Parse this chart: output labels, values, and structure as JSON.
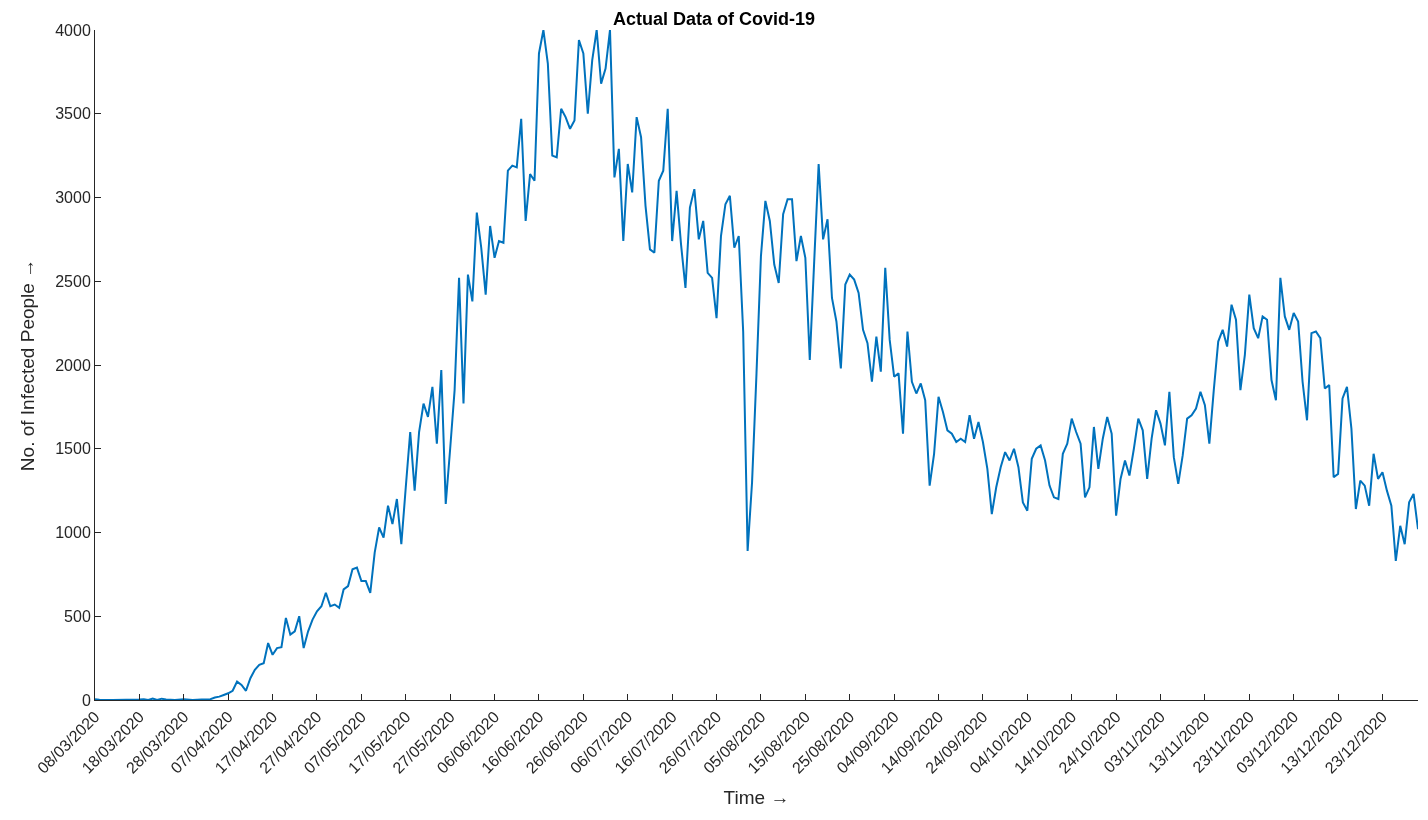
{
  "chart_data": {
    "type": "line",
    "title": "Actual Data of Covid-19",
    "xlabel": "Time →",
    "ylabel": "No. of Infected People →",
    "series": [
      {
        "color": "#0072bd",
        "x": [
          "2020-03-08",
          "2020-03-09",
          "2020-03-12",
          "2020-03-18",
          "2020-03-19",
          "2020-03-20",
          "2020-03-21",
          "2020-03-22",
          "2020-03-23",
          "2020-03-24",
          "2020-03-26",
          "2020-03-28",
          "2020-03-30",
          "2020-04-01",
          "2020-04-03",
          "2020-04-04",
          "2020-04-05",
          "2020-04-06",
          "2020-04-07",
          "2020-04-08",
          "2020-04-09",
          "2020-04-10",
          "2020-04-11",
          "2020-04-12",
          "2020-04-13",
          "2020-04-14",
          "2020-04-15",
          "2020-04-16",
          "2020-04-17",
          "2020-04-18",
          "2020-04-19",
          "2020-04-20",
          "2020-04-21",
          "2020-04-22",
          "2020-04-23",
          "2020-04-24",
          "2020-04-25",
          "2020-04-26",
          "2020-04-27",
          "2020-04-28",
          "2020-04-29",
          "2020-04-30",
          "2020-05-01",
          "2020-05-02",
          "2020-05-03",
          "2020-05-04",
          "2020-05-05",
          "2020-05-06",
          "2020-05-07",
          "2020-05-08",
          "2020-05-09",
          "2020-05-10",
          "2020-05-11",
          "2020-05-12",
          "2020-05-13",
          "2020-05-14",
          "2020-05-15",
          "2020-05-16",
          "2020-05-17",
          "2020-05-18",
          "2020-05-19",
          "2020-05-20",
          "2020-05-21",
          "2020-05-22",
          "2020-05-23",
          "2020-05-24",
          "2020-05-25",
          "2020-05-26",
          "2020-05-27",
          "2020-05-28",
          "2020-05-29",
          "2020-05-30",
          "2020-05-31",
          "2020-06-01",
          "2020-06-02",
          "2020-06-03",
          "2020-06-04",
          "2020-06-05",
          "2020-06-06",
          "2020-06-07",
          "2020-06-08",
          "2020-06-09",
          "2020-06-10",
          "2020-06-11",
          "2020-06-12",
          "2020-06-13",
          "2020-06-14",
          "2020-06-15",
          "2020-06-16",
          "2020-06-17",
          "2020-06-18",
          "2020-06-19",
          "2020-06-20",
          "2020-06-21",
          "2020-06-22",
          "2020-06-23",
          "2020-06-24",
          "2020-06-25",
          "2020-06-26",
          "2020-06-27",
          "2020-06-28",
          "2020-06-29",
          "2020-06-30",
          "2020-07-01",
          "2020-07-02",
          "2020-07-03",
          "2020-07-04",
          "2020-07-05",
          "2020-07-06",
          "2020-07-07",
          "2020-07-08",
          "2020-07-09",
          "2020-07-10",
          "2020-07-11",
          "2020-07-12",
          "2020-07-13",
          "2020-07-14",
          "2020-07-15",
          "2020-07-16",
          "2020-07-17",
          "2020-07-18",
          "2020-07-19",
          "2020-07-20",
          "2020-07-21",
          "2020-07-22",
          "2020-07-23",
          "2020-07-24",
          "2020-07-25",
          "2020-07-26",
          "2020-07-27",
          "2020-07-28",
          "2020-07-29",
          "2020-07-30",
          "2020-07-31",
          "2020-08-01",
          "2020-08-02",
          "2020-08-03",
          "2020-08-04",
          "2020-08-05",
          "2020-08-06",
          "2020-08-07",
          "2020-08-08",
          "2020-08-09",
          "2020-08-10",
          "2020-08-11",
          "2020-08-12",
          "2020-08-13",
          "2020-08-14",
          "2020-08-15",
          "2020-08-16",
          "2020-08-17",
          "2020-08-18",
          "2020-08-19",
          "2020-08-20",
          "2020-08-21",
          "2020-08-22",
          "2020-08-23",
          "2020-08-24",
          "2020-08-25",
          "2020-08-26",
          "2020-08-27",
          "2020-08-28",
          "2020-08-29",
          "2020-08-30",
          "2020-08-31",
          "2020-09-01",
          "2020-09-02",
          "2020-09-03",
          "2020-09-04",
          "2020-09-05",
          "2020-09-06",
          "2020-09-07",
          "2020-09-08",
          "2020-09-09",
          "2020-09-10",
          "2020-09-11",
          "2020-09-12",
          "2020-09-13",
          "2020-09-14",
          "2020-09-15",
          "2020-09-16",
          "2020-09-17",
          "2020-09-18",
          "2020-09-19",
          "2020-09-20",
          "2020-09-21",
          "2020-09-22",
          "2020-09-23",
          "2020-09-24",
          "2020-09-25",
          "2020-09-26",
          "2020-09-27",
          "2020-09-28",
          "2020-09-29",
          "2020-09-30",
          "2020-10-01",
          "2020-10-02",
          "2020-10-03",
          "2020-10-04",
          "2020-10-05",
          "2020-10-06",
          "2020-10-07",
          "2020-10-08",
          "2020-10-09",
          "2020-10-10",
          "2020-10-11",
          "2020-10-12",
          "2020-10-13",
          "2020-10-14",
          "2020-10-15",
          "2020-10-16",
          "2020-10-17",
          "2020-10-18",
          "2020-10-19",
          "2020-10-20",
          "2020-10-21",
          "2020-10-22",
          "2020-10-23",
          "2020-10-24",
          "2020-10-25",
          "2020-10-26",
          "2020-10-27",
          "2020-10-28",
          "2020-10-29",
          "2020-10-30",
          "2020-10-31",
          "2020-11-01",
          "2020-11-02",
          "2020-11-03",
          "2020-11-04",
          "2020-11-05",
          "2020-11-06",
          "2020-11-07",
          "2020-11-08",
          "2020-11-09",
          "2020-11-10",
          "2020-11-11",
          "2020-11-12",
          "2020-11-13",
          "2020-11-14",
          "2020-11-15",
          "2020-11-16",
          "2020-11-17",
          "2020-11-18",
          "2020-11-19",
          "2020-11-20",
          "2020-11-21",
          "2020-11-22",
          "2020-11-23",
          "2020-11-24",
          "2020-11-25",
          "2020-11-26",
          "2020-11-27",
          "2020-11-28",
          "2020-11-29",
          "2020-11-30",
          "2020-12-01",
          "2020-12-02",
          "2020-12-03",
          "2020-12-04",
          "2020-12-05",
          "2020-12-06",
          "2020-12-07",
          "2020-12-08",
          "2020-12-09",
          "2020-12-10",
          "2020-12-11",
          "2020-12-12",
          "2020-12-13",
          "2020-12-14",
          "2020-12-15",
          "2020-12-16",
          "2020-12-17",
          "2020-12-18",
          "2020-12-19",
          "2020-12-20",
          "2020-12-21",
          "2020-12-22",
          "2020-12-23",
          "2020-12-24",
          "2020-12-25",
          "2020-12-26",
          "2020-12-27",
          "2020-12-28",
          "2020-12-29",
          "2020-12-30",
          "2020-12-31"
        ],
        "values": [
          5,
          2,
          0,
          3,
          5,
          0,
          8,
          0,
          8,
          3,
          0,
          5,
          0,
          3,
          5,
          15,
          20,
          30,
          40,
          55,
          110,
          90,
          55,
          130,
          180,
          210,
          220,
          340,
          270,
          310,
          315,
          490,
          390,
          410,
          500,
          310,
          410,
          480,
          530,
          560,
          640,
          560,
          570,
          550,
          660,
          680,
          780,
          790,
          710,
          710,
          640,
          880,
          1030,
          970,
          1160,
          1050,
          1200,
          930,
          1270,
          1600,
          1250,
          1600,
          1770,
          1690,
          1870,
          1530,
          1970,
          1170,
          1500,
          1850,
          2520,
          1770,
          2540,
          2380,
          2910,
          2700,
          2420,
          2830,
          2640,
          2740,
          2730,
          3160,
          3190,
          3180,
          3470,
          2860,
          3140,
          3100,
          3860,
          4000,
          3800,
          3250,
          3240,
          3530,
          3480,
          3410,
          3460,
          3940,
          3860,
          3500,
          3820,
          4000,
          3680,
          3770,
          4000,
          3120,
          3290,
          2740,
          3200,
          3030,
          3480,
          3360,
          2950,
          2690,
          2670,
          3100,
          3160,
          3530,
          2740,
          3040,
          2720,
          2460,
          2940,
          3050,
          2750,
          2860,
          2550,
          2520,
          2280,
          2770,
          2960,
          3010,
          2700,
          2770,
          2200,
          890,
          1300,
          1950,
          2650,
          2980,
          2860,
          2600,
          2490,
          2900,
          2990,
          2990,
          2620,
          2770,
          2640,
          2030,
          2620,
          3200,
          2750,
          2870,
          2400,
          2260,
          1980,
          2480,
          2540,
          2510,
          2430,
          2210,
          2130,
          1900,
          2170,
          1960,
          2580,
          2150,
          1930,
          1950,
          1590,
          2200,
          1900,
          1830,
          1890,
          1790,
          1280,
          1470,
          1810,
          1720,
          1610,
          1590,
          1540,
          1560,
          1540,
          1700,
          1560,
          1660,
          1540,
          1380,
          1110,
          1270,
          1390,
          1480,
          1430,
          1500,
          1390,
          1180,
          1130,
          1440,
          1500,
          1520,
          1430,
          1280,
          1210,
          1200,
          1470,
          1530,
          1680,
          1600,
          1530,
          1210,
          1270,
          1630,
          1380,
          1560,
          1690,
          1590,
          1100,
          1320,
          1430,
          1340,
          1500,
          1680,
          1610,
          1320,
          1560,
          1730,
          1650,
          1520,
          1840,
          1450,
          1290,
          1460,
          1680,
          1700,
          1740,
          1840,
          1760,
          1530,
          1850,
          2140,
          2210,
          2110,
          2360,
          2270,
          1850,
          2060,
          2420,
          2220,
          2160,
          2290,
          2270,
          1910,
          1790,
          2520,
          2290,
          2210,
          2310,
          2260,
          1900,
          1670,
          2190,
          2200,
          2160,
          1860,
          1880,
          1330,
          1350,
          1800,
          1870,
          1620,
          1140,
          1310,
          1280,
          1160,
          1470,
          1320,
          1360,
          1250,
          1160,
          830,
          1040,
          930,
          1180,
          1230,
          1020
        ]
      }
    ],
    "xlim": [
      "2020-03-08",
      "2020-12-31"
    ],
    "xticks": [
      {
        "value": "2020-03-08",
        "label": "08/03/2020"
      },
      {
        "value": "2020-03-18",
        "label": "18/03/2020"
      },
      {
        "value": "2020-03-28",
        "label": "28/03/2020"
      },
      {
        "value": "2020-04-07",
        "label": "07/04/2020"
      },
      {
        "value": "2020-04-17",
        "label": "17/04/2020"
      },
      {
        "value": "2020-04-27",
        "label": "27/04/2020"
      },
      {
        "value": "2020-05-07",
        "label": "07/05/2020"
      },
      {
        "value": "2020-05-17",
        "label": "17/05/2020"
      },
      {
        "value": "2020-05-27",
        "label": "27/05/2020"
      },
      {
        "value": "2020-06-06",
        "label": "06/06/2020"
      },
      {
        "value": "2020-06-16",
        "label": "16/06/2020"
      },
      {
        "value": "2020-06-26",
        "label": "26/06/2020"
      },
      {
        "value": "2020-07-06",
        "label": "06/07/2020"
      },
      {
        "value": "2020-07-16",
        "label": "16/07/2020"
      },
      {
        "value": "2020-07-26",
        "label": "26/07/2020"
      },
      {
        "value": "2020-08-05",
        "label": "05/08/2020"
      },
      {
        "value": "2020-08-15",
        "label": "15/08/2020"
      },
      {
        "value": "2020-08-25",
        "label": "25/08/2020"
      },
      {
        "value": "2020-09-04",
        "label": "04/09/2020"
      },
      {
        "value": "2020-09-14",
        "label": "14/09/2020"
      },
      {
        "value": "2020-09-24",
        "label": "24/09/2020"
      },
      {
        "value": "2020-10-04",
        "label": "04/10/2020"
      },
      {
        "value": "2020-10-14",
        "label": "14/10/2020"
      },
      {
        "value": "2020-10-24",
        "label": "24/10/2020"
      },
      {
        "value": "2020-11-03",
        "label": "03/11/2020"
      },
      {
        "value": "2020-11-13",
        "label": "13/11/2020"
      },
      {
        "value": "2020-11-23",
        "label": "23/11/2020"
      },
      {
        "value": "2020-12-03",
        "label": "03/12/2020"
      },
      {
        "value": "2020-12-13",
        "label": "13/12/2020"
      },
      {
        "value": "2020-12-23",
        "label": "23/12/2020"
      }
    ],
    "ylim": [
      0,
      4000
    ],
    "yticks": [
      0,
      500,
      1000,
      1500,
      2000,
      2500,
      3000,
      3500,
      4000
    ],
    "marker": "none",
    "line_style": "solid"
  }
}
